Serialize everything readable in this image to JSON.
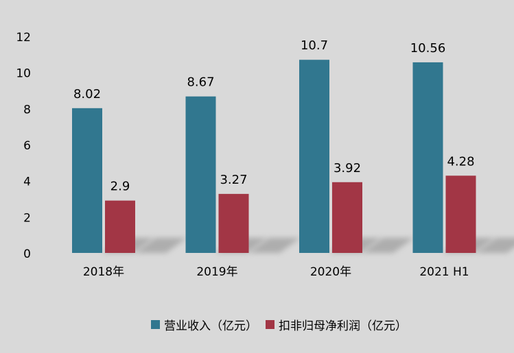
{
  "chart_data": {
    "type": "bar",
    "categories": [
      "2018年",
      "2019年",
      "2020年",
      "2021 H1"
    ],
    "series": [
      {
        "name": "营业收入（亿元）",
        "values": [
          8.02,
          8.67,
          10.7,
          10.56
        ],
        "color": "#31778f"
      },
      {
        "name": "扣非归母净利润（亿元）",
        "values": [
          2.9,
          3.27,
          3.92,
          4.28
        ],
        "color": "#a23645"
      }
    ],
    "data_labels": [
      [
        "8.02",
        "8.67",
        "10.7",
        "10.56"
      ],
      [
        "2.9",
        "3.27",
        "3.92",
        "4.28"
      ]
    ],
    "yticks": [
      "0",
      "2",
      "4",
      "6",
      "8",
      "10",
      "12"
    ],
    "ylim": [
      0,
      12
    ],
    "grid": false,
    "legend_position": "bottom"
  }
}
